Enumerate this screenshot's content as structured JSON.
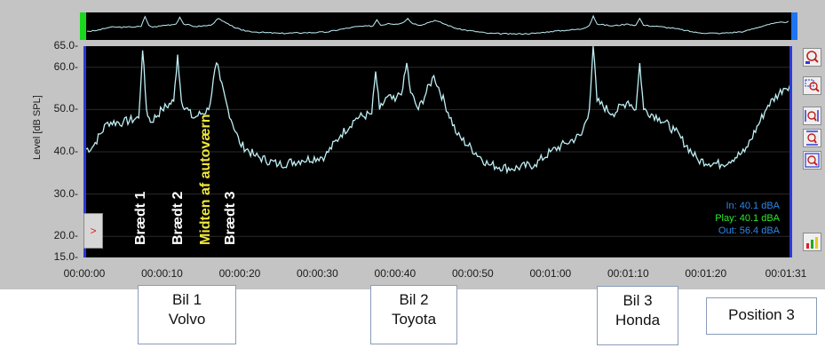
{
  "window": {
    "title": ""
  },
  "axis": {
    "y_label": "Level [dB SPL]",
    "y_ticks": [
      "65.0-",
      "60.0-",
      "50.0-",
      "40.0-",
      "30.0-",
      "20.0-",
      "15.0-"
    ],
    "x_ticks": [
      "00:00:00",
      "00:00:10",
      "00:00:20",
      "00:00:30",
      "00:00:40",
      "00:00:50",
      "00:01:00",
      "00:01:10",
      "00:01:20",
      "00:01:31"
    ]
  },
  "annotations": {
    "braedt1": "Brædt 1",
    "braedt2": "Brædt 2",
    "midten": "Midten af autoværn",
    "braedt3": "Brædt 3"
  },
  "readouts": {
    "in": "In: 40.1 dBA",
    "play": "Play: 40.1 dBA",
    "out": "Out: 56.4 dBA"
  },
  "cursor_button": {
    "glyph": ">"
  },
  "tools": [
    "zoom-fit-icon",
    "zoom-region-icon",
    "zoom-x-icon",
    "zoom-y-icon",
    "pan-zoom-icon",
    "color-palette-icon"
  ],
  "cars": [
    {
      "line1": "Bil 1",
      "line2": "Volvo"
    },
    {
      "line1": "Bil 2",
      "line2": "Toyota"
    },
    {
      "line1": "Bil 3",
      "line2": "Honda"
    }
  ],
  "position_label": "Position 3",
  "colors": {
    "trace": "#bff0f5",
    "overview_start": "#19d81d",
    "overview_end": "#1f74f0",
    "edge": "#2b38d8",
    "highlight_label": "#f0e83a"
  },
  "chart_data": {
    "type": "line",
    "xlabel": "",
    "ylabel": "Level [dB SPL]",
    "ylim": [
      15,
      65
    ],
    "xlim_seconds": [
      0,
      91
    ],
    "x_seconds": [
      0,
      1,
      3,
      5,
      7,
      7.5,
      8,
      8.5,
      10,
      11.5,
      12,
      12.5,
      14,
      16,
      17,
      17.5,
      18.5,
      20,
      22,
      25,
      28,
      31,
      33,
      35,
      37,
      37.5,
      38,
      39,
      40,
      41,
      41.5,
      42,
      43,
      45,
      48,
      52,
      55,
      58,
      60,
      62,
      64,
      65,
      65.5,
      66,
      68,
      70,
      71,
      71.5,
      72,
      74,
      76,
      79,
      82,
      85,
      88,
      90,
      91
    ],
    "y_db": [
      40.5,
      41,
      47,
      47,
      48,
      64,
      50,
      47,
      50,
      52,
      63,
      52,
      48,
      50,
      61,
      57,
      50,
      42,
      39,
      37,
      38,
      39,
      44,
      48,
      49,
      59,
      50,
      53,
      52,
      55,
      61,
      54,
      50,
      58,
      44,
      37,
      36,
      37,
      40,
      42,
      44,
      50,
      65,
      52,
      49,
      52,
      50,
      61,
      50,
      48,
      45,
      38,
      37,
      40,
      51,
      55,
      56
    ]
  }
}
